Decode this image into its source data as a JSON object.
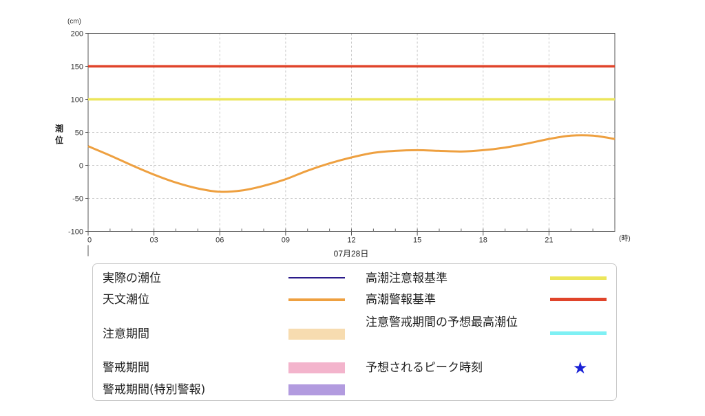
{
  "chart_data": {
    "type": "line",
    "y_unit": "(cm)",
    "x_unit": "(時)",
    "ylabel": "潮位",
    "date": "07月28日",
    "xlim": [
      0,
      24
    ],
    "ylim": [
      -100,
      200
    ],
    "yticks": [
      200,
      150,
      100,
      50,
      0,
      -50,
      -100
    ],
    "xticks": [
      {
        "value": 0,
        "label": "0"
      },
      {
        "value": 3,
        "label": "03"
      },
      {
        "value": 6,
        "label": "06"
      },
      {
        "value": 9,
        "label": "09"
      },
      {
        "value": 12,
        "label": "12"
      },
      {
        "value": 15,
        "label": "15"
      },
      {
        "value": 18,
        "label": "18"
      },
      {
        "value": 21,
        "label": "21"
      }
    ],
    "grid": true,
    "reference_lines": [
      {
        "name": "高潮警報基準",
        "value": 150,
        "color": "#e0442a"
      },
      {
        "name": "高潮注意報基準",
        "value": 100,
        "color": "#ece65a"
      }
    ],
    "series": [
      {
        "name": "天文潮位",
        "color": "#eea040",
        "x": [
          0,
          1,
          2,
          3,
          4,
          5,
          6,
          7,
          8,
          9,
          10,
          11,
          12,
          13,
          14,
          15,
          16,
          17,
          18,
          19,
          20,
          21,
          22,
          23,
          24
        ],
        "y": [
          29,
          15,
          0,
          -14,
          -26,
          -35,
          -40,
          -38,
          -31,
          -21,
          -8,
          3,
          12,
          19,
          22,
          23,
          22,
          21,
          23,
          27,
          33,
          40,
          45,
          45,
          40
        ]
      }
    ]
  },
  "legend": {
    "items": [
      {
        "label": "実際の潮位",
        "color": "#2a1a8a"
      },
      {
        "label": "天文潮位",
        "color": "#eea040"
      },
      {
        "label": "注意期間",
        "color": "#f7dcb0"
      },
      {
        "label": "警戒期間",
        "color": "#f3b4cc"
      },
      {
        "label": "警戒期間(特別警報)",
        "color": "#b29bdf"
      },
      {
        "label": "高潮注意報基準",
        "color": "#ece65a"
      },
      {
        "label": "高潮警報基準",
        "color": "#e0442a"
      },
      {
        "label": "注意警戒期間の予想最高潮位",
        "color": "#7ff0f4"
      },
      {
        "label": "予想されるピーク時刻",
        "symbol": "★",
        "color": "#1a22d6"
      }
    ]
  }
}
